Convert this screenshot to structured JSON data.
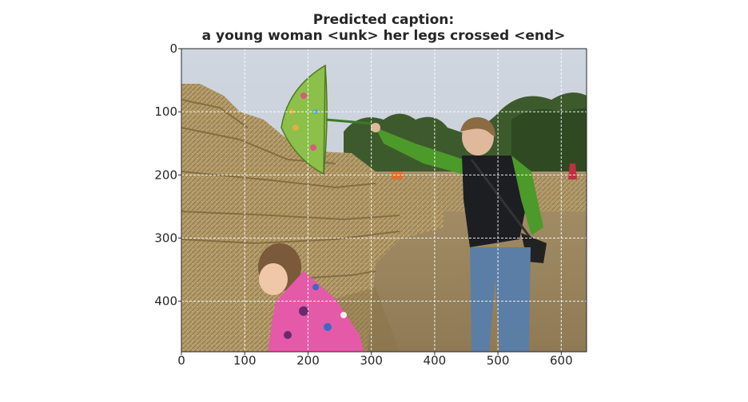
{
  "chart_data": {
    "type": "image",
    "title": "Predicted caption:",
    "subtitle": "a young woman <unk> her legs crossed <end>",
    "xlabel": "",
    "ylabel": "",
    "xlim": [
      0,
      640
    ],
    "ylim": [
      480,
      0
    ],
    "xticks": [
      0,
      100,
      200,
      300,
      400,
      500,
      600
    ],
    "yticks": [
      0,
      100,
      200,
      300,
      400
    ],
    "grid": true,
    "colors": {
      "sky": "#c9d1dc",
      "hay": "#b59e6c",
      "trees": "#3d5a2c",
      "umbrella": "#8cc04a",
      "jacket_pink": "#e45aa8",
      "vest": "#1c1e22",
      "sleeve_green": "#4c9a2a",
      "jeans": "#5b7ea6",
      "text": "#262626"
    }
  }
}
